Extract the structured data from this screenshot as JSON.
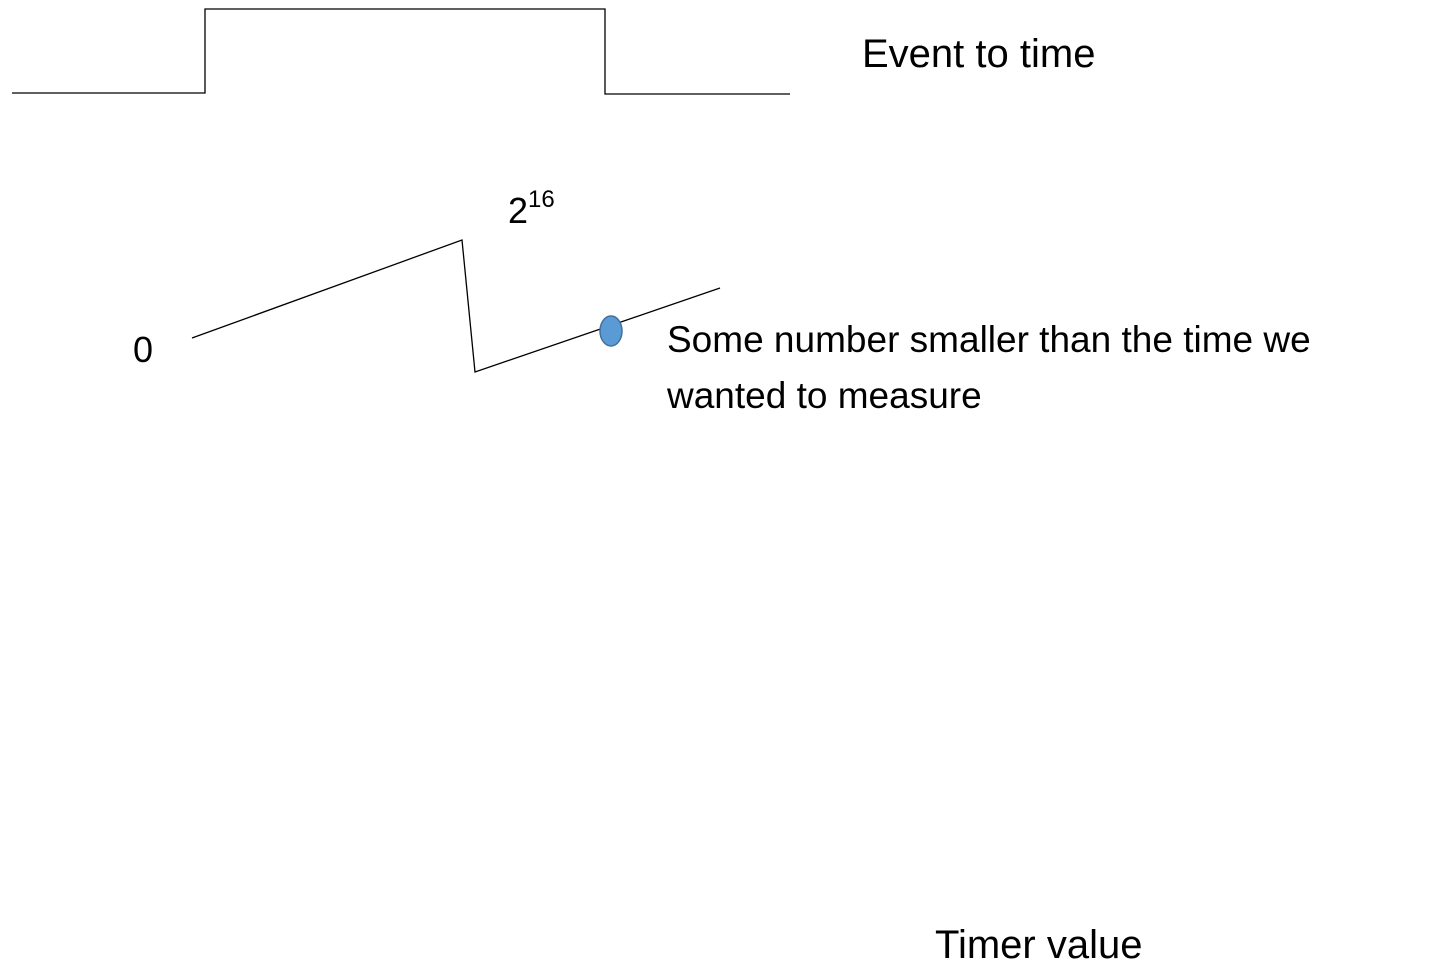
{
  "signal_label": "Event to time",
  "timer": {
    "start_label": "0",
    "max_label_base": "2",
    "max_label_exponent": "16"
  },
  "annotation": {
    "lines": [
      "Some number smaller than the time we",
      "wanted to measure"
    ]
  },
  "axis_label": "Timer value"
}
